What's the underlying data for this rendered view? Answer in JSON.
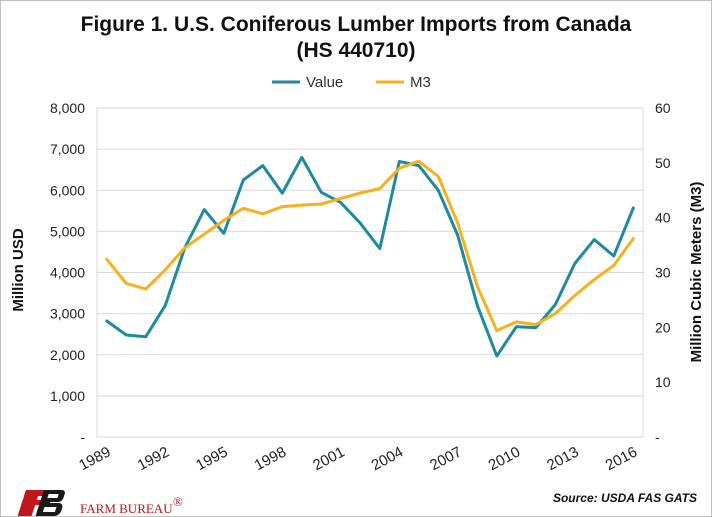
{
  "chart_data": {
    "type": "line",
    "title_line1": "Figure 1. U.S. Coniferous Lumber Imports from Canada",
    "title_line2": "(HS 440710)",
    "ylabel_left": "Million USD",
    "ylabel_right": "Million Cubic Meters (M3)",
    "ylim_left": [
      0,
      8000
    ],
    "ylim_right": [
      0,
      60
    ],
    "yticks_left": [
      "-",
      "1,000",
      "2,000",
      "3,000",
      "4,000",
      "5,000",
      "6,000",
      "7,000",
      "8,000"
    ],
    "yticks_right": [
      "-",
      "10",
      "20",
      "30",
      "40",
      "50",
      "60"
    ],
    "x": [
      1989,
      1990,
      1991,
      1992,
      1993,
      1994,
      1995,
      1996,
      1997,
      1998,
      1999,
      2000,
      2001,
      2002,
      2003,
      2004,
      2005,
      2006,
      2007,
      2008,
      2009,
      2010,
      2011,
      2012,
      2013,
      2014,
      2015,
      2016
    ],
    "xtick_labels": [
      "1989",
      "1992",
      "1995",
      "1998",
      "2001",
      "2004",
      "2007",
      "2010",
      "2013",
      "2016"
    ],
    "legend_position": "top-center",
    "grid": true,
    "series": [
      {
        "name": "Value",
        "axis": "left",
        "color": "#1f8a9e",
        "values": [
          2820,
          2480,
          2440,
          3200,
          4600,
          5530,
          4950,
          6250,
          6600,
          5930,
          6800,
          5950,
          5700,
          5200,
          4580,
          6700,
          6600,
          6000,
          4900,
          3200,
          1970,
          2680,
          2660,
          3220,
          4220,
          4800,
          4400,
          5570
        ]
      },
      {
        "name": "M3",
        "axis": "right",
        "color": "#f5b21e",
        "values": [
          32.4,
          28.0,
          27.0,
          30.5,
          34.5,
          37.0,
          39.5,
          41.7,
          40.7,
          42.0,
          42.3,
          42.5,
          43.5,
          44.5,
          45.3,
          49.0,
          50.3,
          47.5,
          39.0,
          27.5,
          19.4,
          21.0,
          20.5,
          22.5,
          25.8,
          28.7,
          31.3,
          36.2
        ]
      }
    ],
    "source": "Source:  USDA FAS GATS"
  },
  "logo": {
    "text": "FARM BUREAU",
    "mark": "FB",
    "registered": "®"
  }
}
